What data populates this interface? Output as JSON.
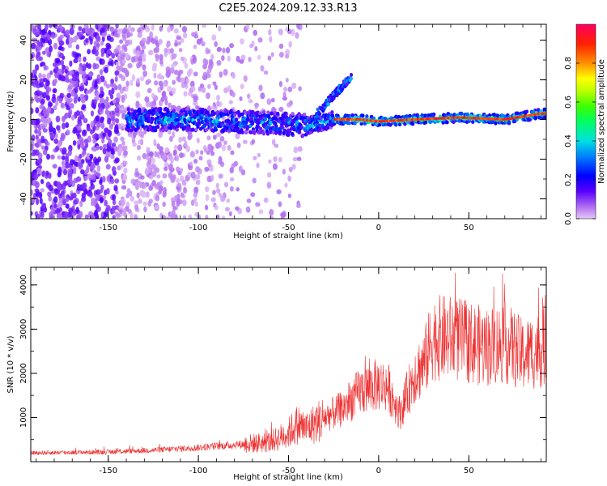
{
  "title": "C2E5.2024.209.12.33.R13",
  "chart_data": [
    {
      "type": "heatmap",
      "name": "spectrogram",
      "xlabel": "Height of straight line (km)",
      "ylabel": "Frequency (Hz)",
      "xlim": [
        -193,
        93
      ],
      "ylim": [
        -50,
        48
      ],
      "x_ticks": [
        -150,
        -100,
        -50,
        0,
        50
      ],
      "y_ticks": [
        -40,
        -20,
        0,
        20,
        40
      ],
      "colorbar": {
        "label": "Normalized spectral amplitude",
        "range": [
          0,
          1
        ],
        "ticks": [
          0.0,
          0.2,
          0.4,
          0.6,
          0.8
        ],
        "tick_labels": [
          "0.0",
          "0.2",
          "0.4",
          "0.6",
          "0.8"
        ]
      },
      "ridge_frequency_hz": [
        {
          "x": -140,
          "y": 0
        },
        {
          "x": -100,
          "y": 0
        },
        {
          "x": -60,
          "y": -2
        },
        {
          "x": -40,
          "y": -3
        },
        {
          "x": -25,
          "y": 0
        },
        {
          "x": -10,
          "y": 0
        },
        {
          "x": 0,
          "y": -1
        },
        {
          "x": 20,
          "y": 0
        },
        {
          "x": 45,
          "y": 1
        },
        {
          "x": 70,
          "y": 0
        },
        {
          "x": 90,
          "y": 3
        }
      ],
      "branch_frequency_hz": [
        {
          "x": -35,
          "y": 2
        },
        {
          "x": -28,
          "y": 9
        },
        {
          "x": -22,
          "y": 15
        },
        {
          "x": -15,
          "y": 22
        }
      ]
    },
    {
      "type": "line",
      "name": "snr",
      "xlabel": "Height of straight line (km)",
      "ylabel": "SNR (10 * v/v)",
      "xlim": [
        -193,
        93
      ],
      "ylim": [
        0,
        4400
      ],
      "x_ticks": [
        -150,
        -100,
        -50,
        0,
        50
      ],
      "y_ticks": [
        1000,
        2000,
        3000,
        4000
      ],
      "color": "#ee3333",
      "trend": [
        {
          "x": -193,
          "y": 200
        },
        {
          "x": -150,
          "y": 220
        },
        {
          "x": -120,
          "y": 270
        },
        {
          "x": -100,
          "y": 320
        },
        {
          "x": -80,
          "y": 380
        },
        {
          "x": -60,
          "y": 450
        },
        {
          "x": -50,
          "y": 650
        },
        {
          "x": -45,
          "y": 850
        },
        {
          "x": -40,
          "y": 750
        },
        {
          "x": -30,
          "y": 1000
        },
        {
          "x": -20,
          "y": 1200
        },
        {
          "x": -10,
          "y": 1600
        },
        {
          "x": 0,
          "y": 1750
        },
        {
          "x": 5,
          "y": 1700
        },
        {
          "x": 10,
          "y": 1250
        },
        {
          "x": 12,
          "y": 1100
        },
        {
          "x": 20,
          "y": 2000
        },
        {
          "x": 25,
          "y": 2200
        },
        {
          "x": 30,
          "y": 2800
        },
        {
          "x": 40,
          "y": 2800
        },
        {
          "x": 50,
          "y": 2700
        },
        {
          "x": 60,
          "y": 2600
        },
        {
          "x": 70,
          "y": 2700
        },
        {
          "x": 80,
          "y": 2400
        },
        {
          "x": 93,
          "y": 2600
        }
      ]
    }
  ]
}
